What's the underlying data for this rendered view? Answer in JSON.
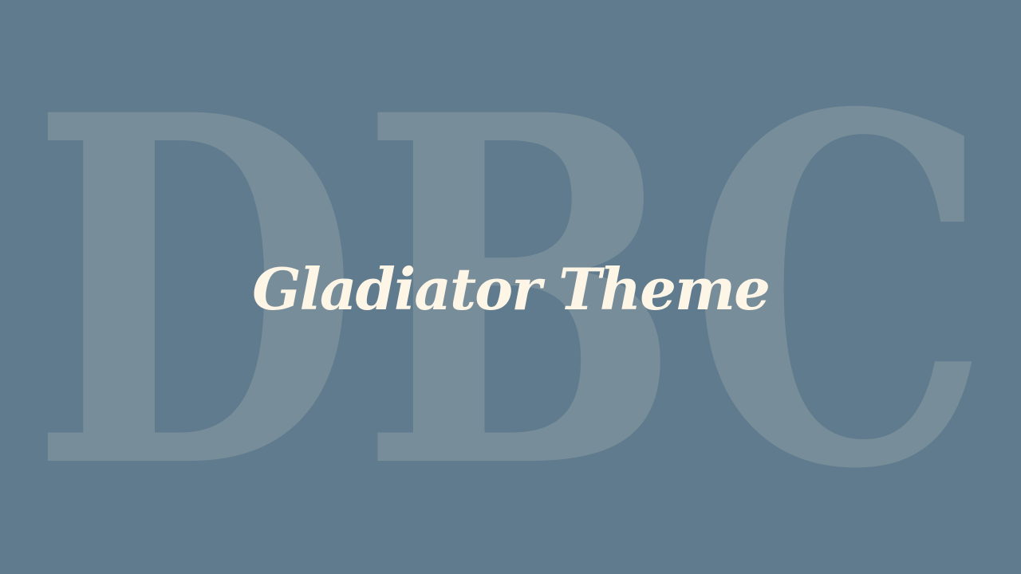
{
  "background": {
    "color": "#5f7b8d",
    "watermark_text": "DBC",
    "watermark_color": "#788d9a"
  },
  "slide": {
    "title": "Gladiator Theme",
    "title_color": "#fdf5e6"
  }
}
